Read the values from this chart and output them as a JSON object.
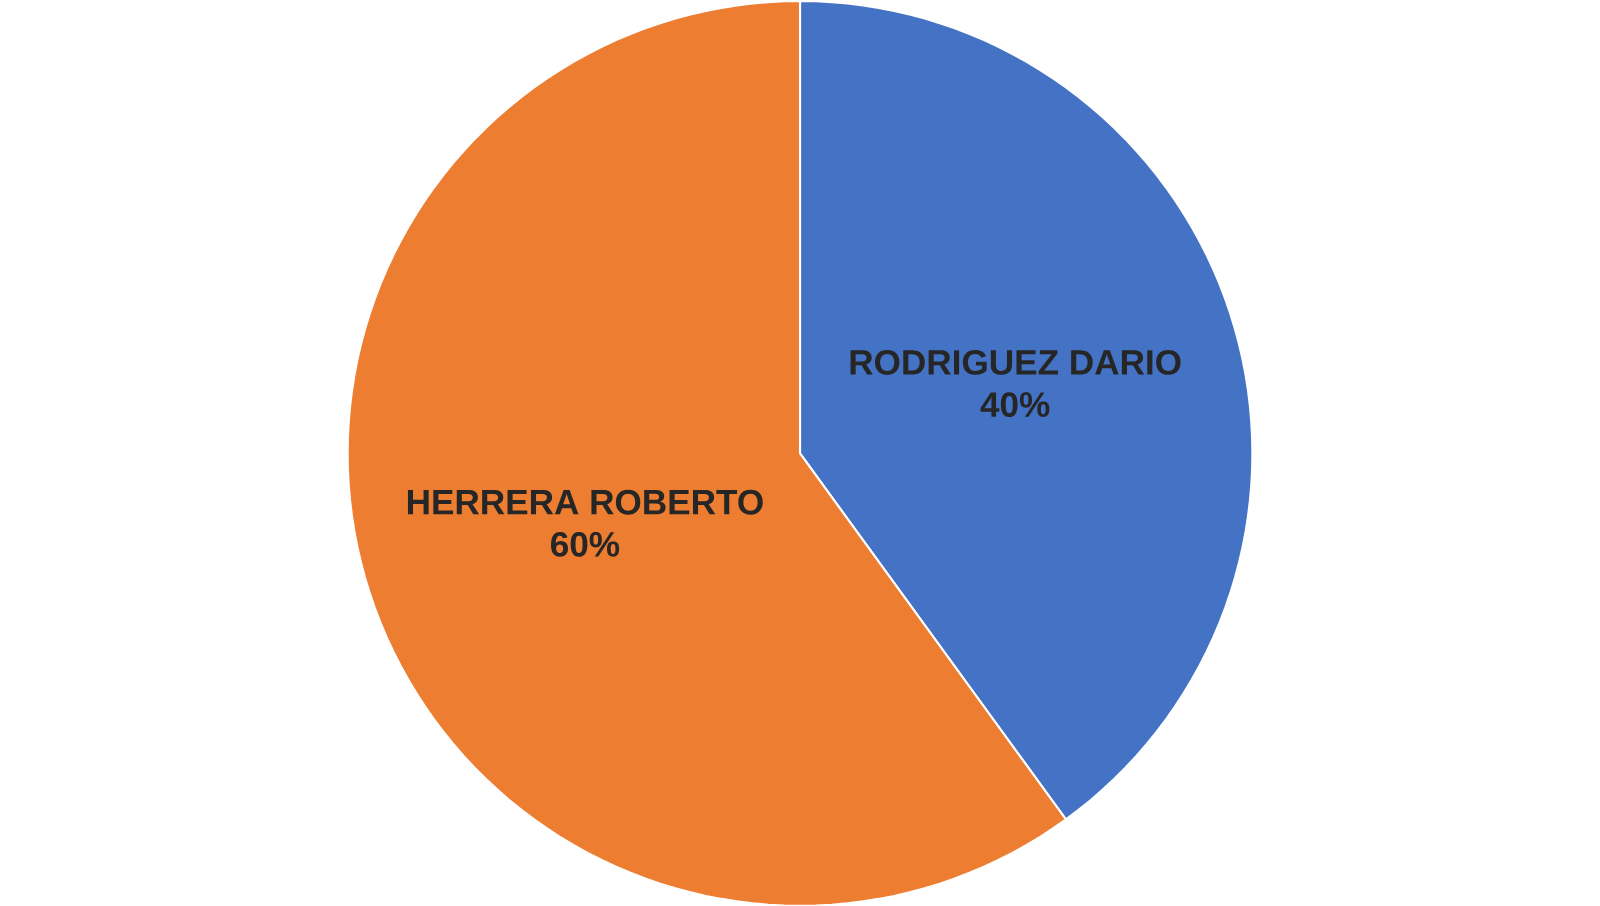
{
  "chart_data": {
    "type": "pie",
    "categories": [
      "RODRIGUEZ DARIO",
      "HERRERA ROBERTO"
    ],
    "values": [
      40,
      60
    ],
    "colors": [
      "#4472c4",
      "#ed7d31"
    ],
    "value_labels": [
      "40%",
      "60%"
    ]
  }
}
